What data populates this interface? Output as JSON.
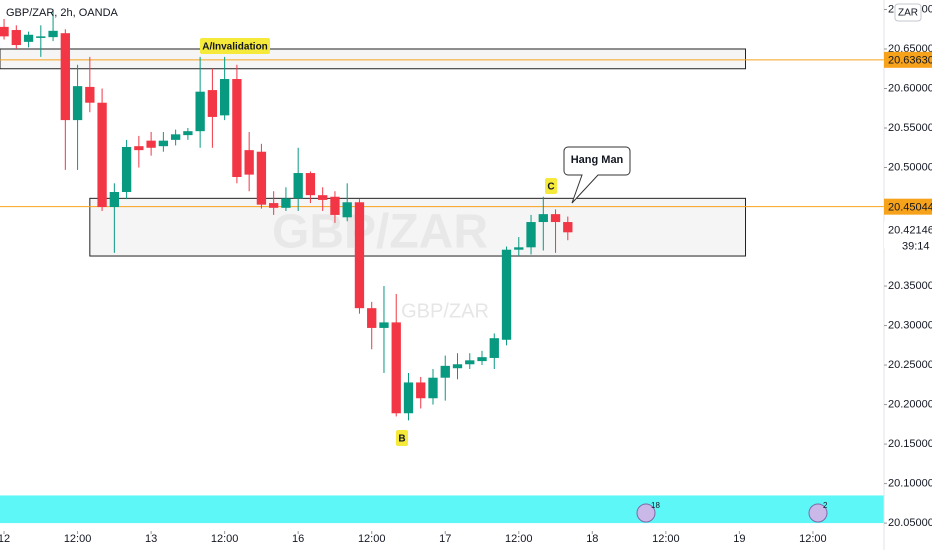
{
  "chart_data": {
    "type": "candlestick",
    "title": "GBP/ZAR, 2h, OANDA",
    "watermark": "GBP/ZAR",
    "currency": "ZAR",
    "up_color": "#089981",
    "down_color": "#f23645",
    "x": [
      0,
      1,
      2,
      3,
      4,
      5,
      6,
      7,
      8,
      9,
      10,
      11,
      12,
      13,
      14,
      15,
      16,
      17,
      18,
      19,
      20,
      21,
      22,
      23,
      24,
      25,
      26,
      27,
      28,
      29,
      30,
      31,
      32,
      33,
      34,
      35,
      36,
      37,
      38,
      39,
      40,
      41,
      42,
      43,
      44,
      45,
      46
    ],
    "open": [
      20.678,
      20.674,
      20.659,
      20.664,
      20.665,
      20.67,
      20.56,
      20.602,
      20.582,
      20.45,
      20.469,
      20.527,
      20.534,
      20.527,
      20.535,
      20.541,
      20.546,
      20.598,
      20.566,
      20.612,
      20.522,
      20.52,
      20.455,
      20.449,
      20.461,
      20.493,
      20.465,
      20.463,
      20.437,
      20.456,
      20.322,
      20.297,
      20.304,
      20.189,
      20.228,
      20.208,
      20.234,
      20.246,
      20.251,
      20.255,
      20.259,
      20.282,
      20.396,
      20.399,
      20.431,
      20.441,
      20.431
    ],
    "high": [
      20.688,
      20.68,
      20.672,
      20.68,
      20.7,
      20.675,
      20.63,
      20.64,
      20.6,
      20.48,
      20.535,
      20.54,
      20.545,
      20.545,
      20.548,
      20.55,
      20.64,
      20.625,
      20.64,
      20.63,
      20.545,
      20.53,
      20.47,
      20.475,
      20.525,
      20.495,
      20.475,
      20.47,
      20.48,
      20.46,
      20.33,
      20.35,
      20.34,
      20.24,
      20.235,
      20.245,
      20.262,
      20.265,
      20.265,
      20.268,
      20.29,
      20.4,
      20.412,
      20.44,
      20.463,
      20.447,
      20.438
    ],
    "low": [
      20.662,
      20.65,
      20.652,
      20.64,
      20.66,
      20.497,
      20.497,
      20.57,
      20.445,
      20.392,
      20.46,
      20.5,
      20.515,
      20.52,
      20.528,
      20.535,
      20.525,
      20.525,
      20.56,
      20.48,
      20.47,
      20.448,
      20.44,
      20.445,
      20.445,
      20.455,
      20.445,
      20.43,
      20.432,
      20.315,
      20.27,
      20.24,
      20.185,
      20.18,
      20.195,
      20.2,
      20.205,
      20.232,
      20.245,
      20.25,
      20.245,
      20.275,
      20.388,
      20.39,
      20.395,
      20.392,
      20.408
    ],
    "close": [
      20.666,
      20.655,
      20.668,
      20.666,
      20.673,
      20.56,
      20.603,
      20.582,
      20.45,
      20.469,
      20.526,
      20.522,
      20.525,
      20.534,
      20.542,
      20.546,
      20.596,
      20.564,
      20.612,
      20.488,
      20.491,
      20.453,
      20.449,
      20.461,
      20.493,
      20.465,
      20.459,
      20.44,
      20.456,
      20.322,
      20.297,
      20.304,
      20.189,
      20.228,
      20.208,
      20.234,
      20.249,
      20.251,
      20.256,
      20.26,
      20.284,
      20.396,
      20.399,
      20.431,
      20.441,
      20.431,
      20.418
    ],
    "xlim": [
      -0.33,
      71.8
    ],
    "ylim": [
      20.04,
      20.712
    ],
    "xticks": [
      {
        "value": 0,
        "label": "12"
      },
      {
        "value": 6,
        "label": "12:00"
      },
      {
        "value": 12,
        "label": "13"
      },
      {
        "value": 18,
        "label": "12:00"
      },
      {
        "value": 24,
        "label": "16"
      },
      {
        "value": 30,
        "label": "12:00"
      },
      {
        "value": 36,
        "label": "17"
      },
      {
        "value": 42,
        "label": "12:00"
      },
      {
        "value": 48,
        "label": "18"
      },
      {
        "value": 54,
        "label": "12:00"
      },
      {
        "value": 60,
        "label": "19"
      },
      {
        "value": 66,
        "label": "12:00"
      }
    ],
    "yticks": [
      {
        "value": 20.7,
        "label": "20.70000"
      },
      {
        "value": 20.65,
        "label": "20.65000"
      },
      {
        "value": 20.6,
        "label": "20.60000"
      },
      {
        "value": 20.55,
        "label": "20.55000"
      },
      {
        "value": 20.5,
        "label": "20.50000"
      },
      {
        "value": 20.35,
        "label": "20.35000"
      },
      {
        "value": 20.3,
        "label": "20.30000"
      },
      {
        "value": 20.25,
        "label": "20.25000"
      },
      {
        "value": 20.2,
        "label": "20.20000"
      },
      {
        "value": 20.15,
        "label": "20.15000"
      },
      {
        "value": 20.1,
        "label": "20.10000"
      },
      {
        "value": 20.05,
        "label": "20.05000"
      }
    ],
    "price_lines": [
      {
        "value": 20.6363,
        "label": "20.63630",
        "color": "#f7a21b"
      },
      {
        "value": 20.45044,
        "label": "20.45044",
        "color": "#f7a21b"
      }
    ],
    "last_price": {
      "value": 20.42146,
      "label": "20.42146",
      "countdown": "39:14"
    },
    "zones": [
      {
        "x0": -0.33,
        "x1": 60.5,
        "top": 20.65,
        "bottom": 20.625
      },
      {
        "x0": 7.0,
        "x1": 60.5,
        "top": 20.461,
        "bottom": 20.388
      }
    ],
    "band": {
      "top": 20.085,
      "bottom": 20.05,
      "color": "#5ef7f7"
    },
    "annotations": [
      {
        "text": "A/Invalidation"
      },
      {
        "text": "B"
      },
      {
        "text": "C"
      },
      {
        "text": "Hang Man"
      }
    ],
    "events": [
      {
        "count": 18
      },
      {
        "count": 2
      }
    ]
  }
}
